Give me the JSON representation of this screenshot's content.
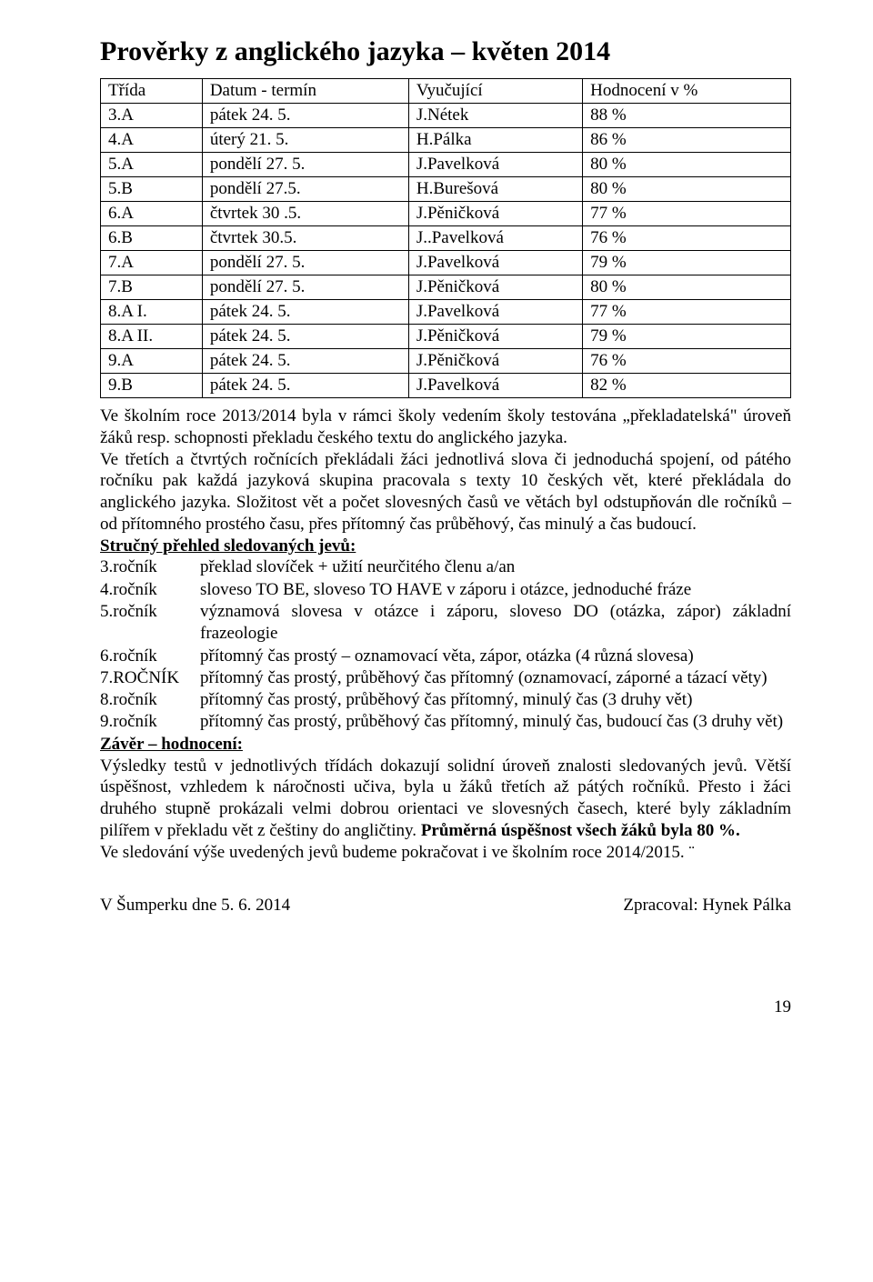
{
  "title": "Prověrky z anglického jazyka – květen 2014",
  "table": {
    "headers": [
      "Třída",
      "Datum - termín",
      "Vyučující",
      "Hodnocení v %"
    ],
    "rows": [
      [
        "3.A",
        "pátek 24. 5.",
        "J.Nétek",
        "88 %"
      ],
      [
        "4.A",
        "úterý 21. 5.",
        "H.Pálka",
        "86 %"
      ],
      [
        "5.A",
        "pondělí 27. 5.",
        "J.Pavelková",
        "80 %"
      ],
      [
        "5.B",
        "pondělí 27.5.",
        "H.Burešová",
        "80 %"
      ],
      [
        "6.A",
        "čtvrtek 30 .5.",
        "J.Pěničková",
        "77 %"
      ],
      [
        "6.B",
        "čtvrtek 30.5.",
        "J..Pavelková",
        "76 %"
      ],
      [
        "7.A",
        "pondělí 27. 5.",
        "J.Pavelková",
        "79 %"
      ],
      [
        "7.B",
        "pondělí 27. 5.",
        "J.Pěničková",
        "80 %"
      ],
      [
        "8.A I.",
        "pátek 24. 5.",
        "J.Pavelková",
        "77 %"
      ],
      [
        "8.A II.",
        "pátek 24. 5.",
        "J.Pěničková",
        "79 %"
      ],
      [
        "9.A",
        "pátek 24. 5.",
        "J.Pěničková",
        "76 %"
      ],
      [
        "9.B",
        "pátek 24. 5.",
        "J.Pavelková",
        "82 %"
      ]
    ]
  },
  "para1": "Ve školním roce 2013/2014 byla v rámci školy vedením školy testována „překladatelská\" úroveň žáků resp. schopnosti překladu českého textu do anglického jazyka.",
  "para2": "Ve třetích a čtvrtých ročnících překládali žáci jednotlivá slova či jednoduchá spojení, od pátého ročníku pak každá jazyková skupina pracovala s texty 10 českých vět, které překládala do anglického jazyka. Složitost vět a počet slovesných časů ve větách byl odstupňován dle ročníků – od přítomného prostého času, přes přítomný čas průběhový, čas minulý a čas budoucí.",
  "overview_heading": "Stručný přehled sledovaných jevů:",
  "overview": [
    {
      "label": "3.ročník",
      "text": "překlad slovíček + užití neurčitého členu a/an"
    },
    {
      "label": "4.ročník",
      "text": "sloveso TO BE, sloveso TO HAVE v záporu i otázce, jednoduché fráze"
    },
    {
      "label": "5.ročník",
      "text": "významová slovesa v otázce i záporu, sloveso DO (otázka, zápor) základní frazeologie"
    },
    {
      "label": "6.ročník",
      "text": "přítomný čas prostý – oznamovací věta, zápor, otázka (4 různá slovesa)"
    },
    {
      "label": "7.ROČNÍK",
      "text": "přítomný čas prostý, průběhový čas přítomný (oznamovací, záporné a tázací věty)"
    },
    {
      "label": "8.ročník",
      "text": "přítomný čas prostý, průběhový čas přítomný, minulý čas (3 druhy vět)"
    },
    {
      "label": "9.ročník",
      "text": "přítomný čas prostý, průběhový čas přítomný, minulý čas, budoucí čas (3 druhy vět)"
    }
  ],
  "conclusion_heading": "Závěr – hodnocení:",
  "conclusion1": "Výsledky testů v jednotlivých třídách dokazují solidní úroveň znalosti sledovaných jevů. Větší úspěšnost, vzhledem k náročnosti učiva, byla u žáků třetích až pátých ročníků. Přesto i žáci druhého stupně prokázali velmi dobrou orientaci ve slovesných časech, které byly základním pilířem v překladu vět z češtiny do angličtiny. ",
  "conclusion_bold": "Průměrná úspěšnost všech žáků byla 80 %.",
  "conclusion2": "Ve sledování výše uvedených jevů budeme pokračovat i ve školním roce 2014/2015. ¨",
  "footer_left": "V Šumperku dne 5. 6. 2014",
  "footer_right": "Zpracoval: Hynek Pálka",
  "page_number": "19"
}
